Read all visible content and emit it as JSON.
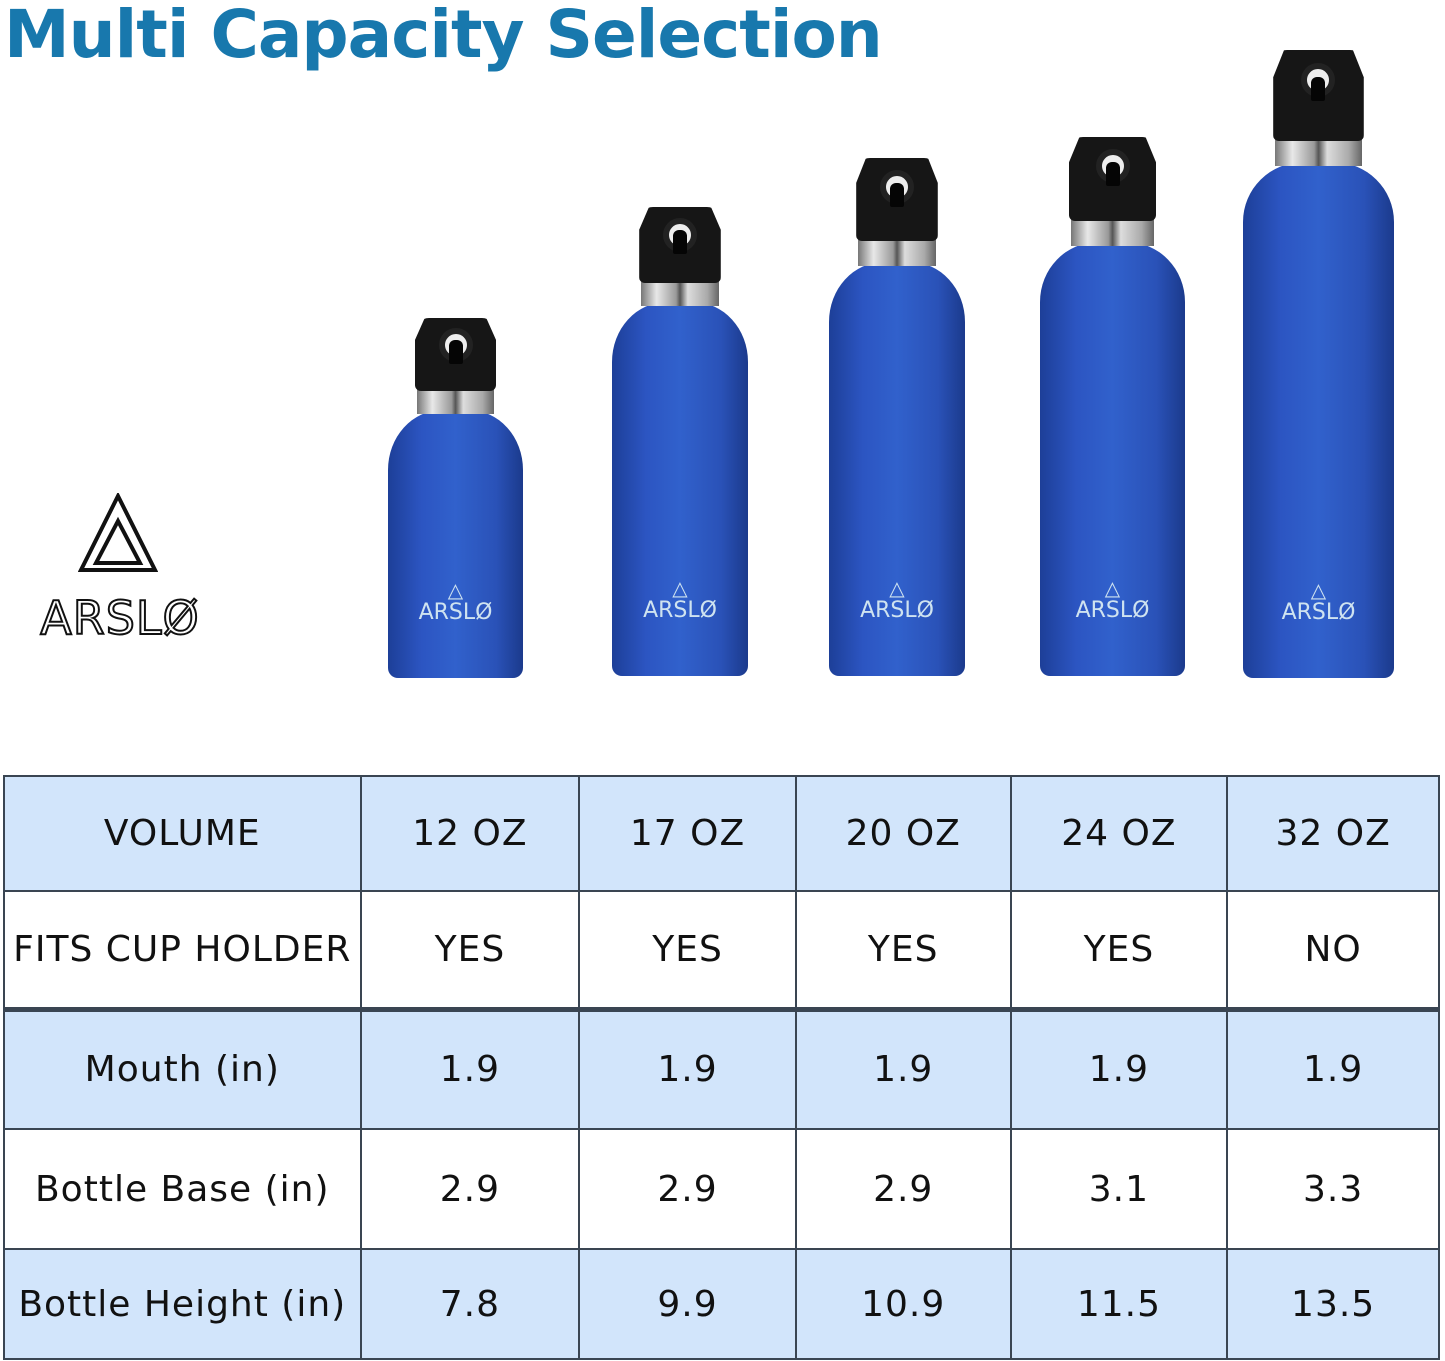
{
  "title": "Multi Capacity Selection",
  "brand": {
    "name": "ARSLØ",
    "logo_icon": "triangle-logo-icon"
  },
  "colors": {
    "title": "#1878ad",
    "bottle": "#2c55c2",
    "table_header_bg": "#d2e5fb"
  },
  "table": {
    "rows": [
      {
        "label": "VOLUME",
        "values": [
          "12 OZ",
          "17 OZ",
          "20 OZ",
          "24 OZ",
          "32 OZ"
        ]
      },
      {
        "label": "FITS CUP HOLDER",
        "values": [
          "YES",
          "YES",
          "YES",
          "YES",
          "NO"
        ]
      },
      {
        "label": "Mouth (in)",
        "values": [
          "1.9",
          "1.9",
          "1.9",
          "1.9",
          "1.9"
        ]
      },
      {
        "label": "Bottle Base (in)",
        "values": [
          "2.9",
          "2.9",
          "2.9",
          "3.1",
          "3.3"
        ]
      },
      {
        "label": "Bottle Height (in)",
        "values": [
          "7.8",
          "9.9",
          "10.9",
          "11.5",
          "13.5"
        ]
      }
    ]
  }
}
